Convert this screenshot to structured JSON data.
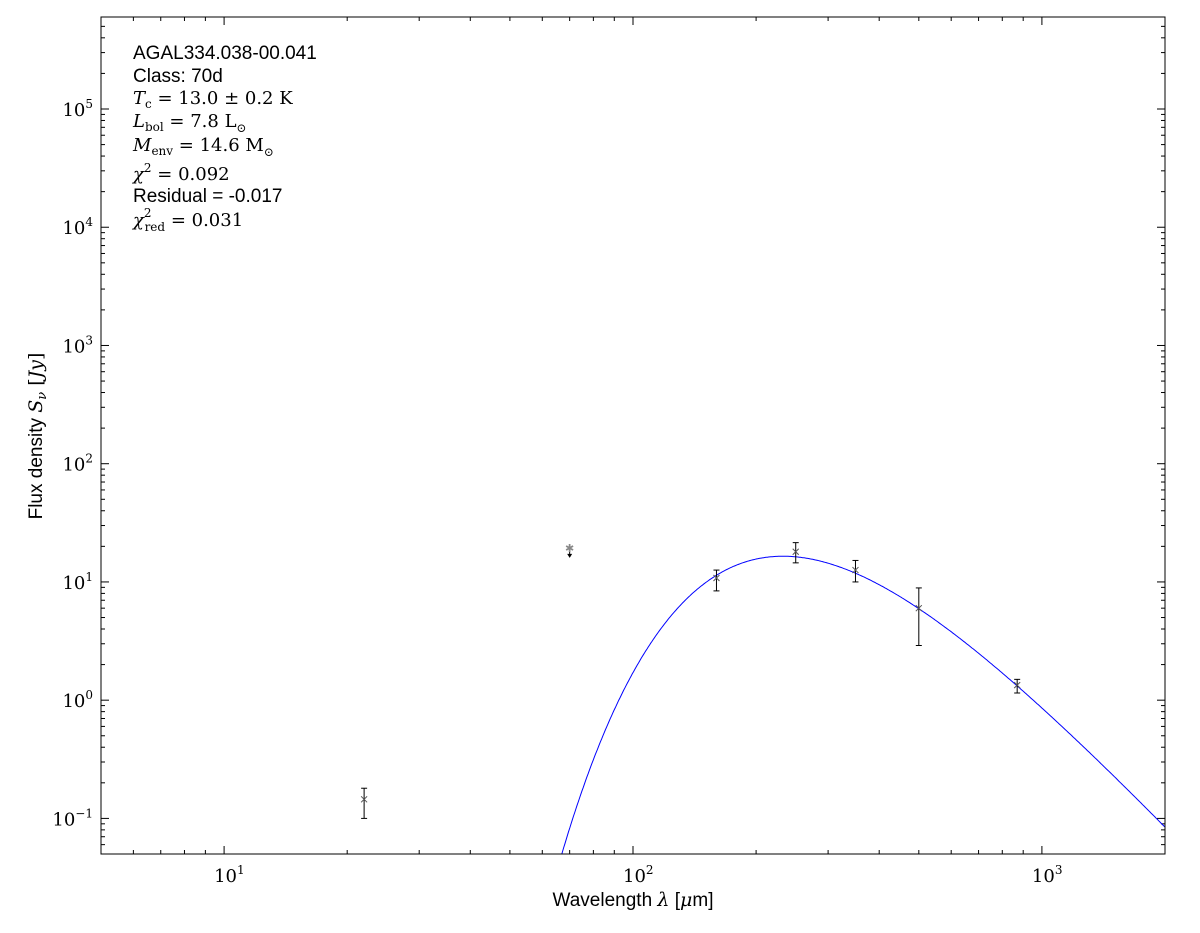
{
  "chart_data": {
    "type": "scatter",
    "xlabel": "Wavelength λ [μm]",
    "ylabel": "Flux density S_ν [Jy]",
    "xlabel_parts": {
      "pre": "Wavelength ",
      "sym": "λ",
      "post": " [",
      "mu": "μ",
      "unit": "m]"
    },
    "ylabel_parts": {
      "pre": "Flux density ",
      "sym": "S",
      "sub": "ν",
      "post": " [",
      "unit": "Jy",
      "end": "]"
    },
    "xscale": "log",
    "yscale": "log",
    "xlim": [
      5,
      2000
    ],
    "ylim": [
      0.05,
      600000
    ],
    "grid": false,
    "x_ticks": [
      {
        "base": "10",
        "exp": "1",
        "value": 10
      },
      {
        "base": "10",
        "exp": "2",
        "value": 100
      },
      {
        "base": "10",
        "exp": "3",
        "value": 1000
      }
    ],
    "y_ticks": [
      {
        "base": "10",
        "exp": "−1",
        "value": 0.1
      },
      {
        "base": "10",
        "exp": "0",
        "value": 1
      },
      {
        "base": "10",
        "exp": "1",
        "value": 10
      },
      {
        "base": "10",
        "exp": "2",
        "value": 100
      },
      {
        "base": "10",
        "exp": "3",
        "value": 1000
      },
      {
        "base": "10",
        "exp": "4",
        "value": 10000
      },
      {
        "base": "10",
        "exp": "5",
        "value": 100000
      }
    ],
    "series": [
      {
        "kind": "measurements",
        "color": "#000000",
        "marker": "x",
        "points": [
          {
            "x": 22,
            "y": 0.145,
            "ylo": 0.1,
            "yhi": 0.18
          },
          {
            "x": 160,
            "y": 10.8,
            "ylo": 8.4,
            "yhi": 12.6
          },
          {
            "x": 250,
            "y": 18.0,
            "ylo": 14.5,
            "yhi": 21.5
          },
          {
            "x": 350,
            "y": 12.6,
            "ylo": 10.0,
            "yhi": 15.2
          },
          {
            "x": 500,
            "y": 6.0,
            "ylo": 2.9,
            "yhi": 8.9
          },
          {
            "x": 870,
            "y": 1.34,
            "ylo": 1.15,
            "yhi": 1.5
          }
        ]
      },
      {
        "kind": "upper-limit",
        "color": "#888888",
        "marker": "star",
        "points": [
          {
            "x": 70,
            "y": 19.4
          }
        ]
      },
      {
        "kind": "model",
        "color": "#0000ff",
        "model": "greybody",
        "temperature_K": 13.0,
        "peak_flux_Jy": 16.5
      }
    ],
    "annotations": {
      "source": "AGAL334.038-00.041",
      "class": "Class: 70d",
      "tc": {
        "sym": "T",
        "sub": "c",
        "rest": " = 13.0 ± 0.2 K"
      },
      "lbol": {
        "sym": "L",
        "sub": "bol",
        "rest": " = 7.8 L",
        "sun": "⊙"
      },
      "menv": {
        "sym": "M",
        "sub": "env",
        "rest": " = 14.6 M",
        "sun": "⊙"
      },
      "chi2": {
        "sym": "χ",
        "sup": "2",
        "rest": " = 0.092"
      },
      "residual": "Residual = -0.017",
      "chi2red": {
        "sym": "χ",
        "sup": "2",
        "sub": "red",
        "rest": " = 0.031"
      }
    }
  }
}
